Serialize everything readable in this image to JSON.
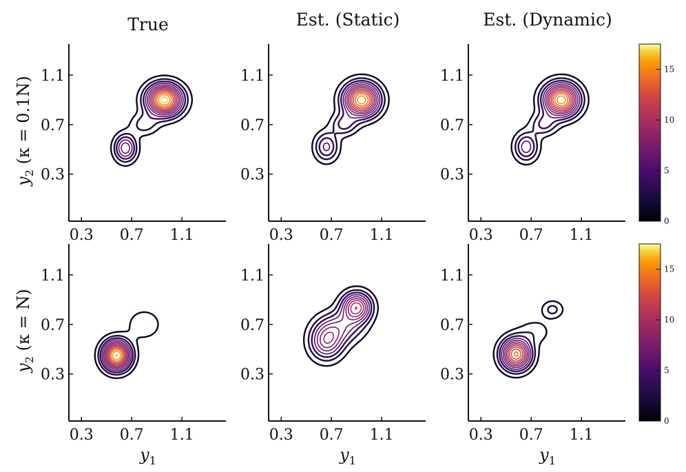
{
  "columns": [
    "True",
    "Est. (Static)",
    "Est. (Dynamic)"
  ],
  "rows": [
    {
      "ylabel_main": "y",
      "ylabel_sub": "2",
      "ylabel_rest": " (κ = 0.1N)"
    },
    {
      "ylabel_main": "y",
      "ylabel_sub": "2",
      "ylabel_rest": " (κ = N)"
    }
  ],
  "xlabel_main": "y",
  "xlabel_sub": "1",
  "axis_ticks": {
    "x": [
      0.3,
      0.7,
      1.1
    ],
    "y": [
      0.3,
      0.7,
      1.1
    ],
    "x_labels": [
      "0.3",
      "0.7",
      "1.1"
    ],
    "y_labels": [
      "0.3",
      "0.7",
      "1.1"
    ]
  },
  "colorbar": {
    "ticks": [
      0,
      5,
      10,
      15
    ],
    "labels": [
      "0",
      "5",
      "10",
      "15"
    ],
    "range": [
      0,
      17.5
    ],
    "colormap": "inferno",
    "colors": [
      "#000004",
      "#320a5e",
      "#781c6d",
      "#bc3754",
      "#ed6925",
      "#fbb61a",
      "#fcffa4"
    ]
  },
  "chart_data": [
    {
      "type": "heatmap",
      "panel": "True, κ = 0.1N",
      "xlabel": "",
      "ylabel": "y2 (κ = 0.1N)",
      "xlim": [
        0.2,
        1.45
      ],
      "ylim": [
        -0.08,
        1.35
      ],
      "components": [
        {
          "x": 0.96,
          "y": 0.9,
          "sx": 0.095,
          "sy": 0.085,
          "peak": 17.5
        },
        {
          "x": 0.65,
          "y": 0.51,
          "sx": 0.06,
          "sy": 0.075,
          "peak": 7.5
        },
        {
          "x": 0.8,
          "y": 0.7,
          "sx": 0.075,
          "sy": 0.06,
          "peak": 3.2
        }
      ]
    },
    {
      "type": "heatmap",
      "panel": "Est. (Static), κ = 0.1N",
      "xlabel": "",
      "ylabel": "",
      "xlim": [
        0.2,
        1.45
      ],
      "ylim": [
        -0.08,
        1.35
      ],
      "components": [
        {
          "x": 0.94,
          "y": 0.9,
          "sx": 0.095,
          "sy": 0.09,
          "peak": 16.5
        },
        {
          "x": 0.66,
          "y": 0.52,
          "sx": 0.065,
          "sy": 0.08,
          "peak": 5.5
        },
        {
          "x": 0.8,
          "y": 0.7,
          "sx": 0.07,
          "sy": 0.06,
          "peak": 4.2
        }
      ]
    },
    {
      "type": "heatmap",
      "panel": "Est. (Dynamic), κ = 0.1N",
      "xlabel": "",
      "ylabel": "",
      "xlim": [
        0.2,
        1.45
      ],
      "ylim": [
        -0.08,
        1.35
      ],
      "components": [
        {
          "x": 0.94,
          "y": 0.9,
          "sx": 0.095,
          "sy": 0.09,
          "peak": 16.5
        },
        {
          "x": 0.66,
          "y": 0.52,
          "sx": 0.065,
          "sy": 0.08,
          "peak": 6.0
        },
        {
          "x": 0.8,
          "y": 0.7,
          "sx": 0.07,
          "sy": 0.06,
          "peak": 4.0
        }
      ]
    },
    {
      "type": "heatmap",
      "panel": "True, κ = N",
      "xlabel": "y1",
      "ylabel": "y2 (κ = N)",
      "xlim": [
        0.2,
        1.45
      ],
      "ylim": [
        -0.08,
        1.35
      ],
      "components": [
        {
          "x": 0.58,
          "y": 0.45,
          "sx": 0.075,
          "sy": 0.08,
          "peak": 17.0
        },
        {
          "x": 0.8,
          "y": 0.7,
          "sx": 0.1,
          "sy": 0.09,
          "peak": 2.2
        }
      ]
    },
    {
      "type": "heatmap",
      "panel": "Est. (Static), κ = N",
      "xlabel": "y1",
      "ylabel": "",
      "xlim": [
        0.2,
        1.45
      ],
      "ylim": [
        -0.08,
        1.35
      ],
      "components": [
        {
          "x": 0.9,
          "y": 0.84,
          "sx": 0.08,
          "sy": 0.08,
          "peak": 11.0
        },
        {
          "x": 0.66,
          "y": 0.56,
          "sx": 0.09,
          "sy": 0.1,
          "peak": 8.0
        },
        {
          "x": 0.78,
          "y": 0.68,
          "sx": 0.12,
          "sy": 0.09,
          "peak": 5.0
        }
      ]
    },
    {
      "type": "heatmap",
      "panel": "Est. (Dynamic), κ = N",
      "xlabel": "y1",
      "ylabel": "",
      "xlim": [
        0.2,
        1.45
      ],
      "ylim": [
        -0.08,
        1.35
      ],
      "components": [
        {
          "x": 0.58,
          "y": 0.46,
          "sx": 0.08,
          "sy": 0.085,
          "peak": 14.5
        },
        {
          "x": 0.87,
          "y": 0.82,
          "sx": 0.06,
          "sy": 0.05,
          "peak": 3.0
        },
        {
          "x": 0.73,
          "y": 0.64,
          "sx": 0.09,
          "sy": 0.07,
          "peak": 2.0
        }
      ]
    }
  ]
}
